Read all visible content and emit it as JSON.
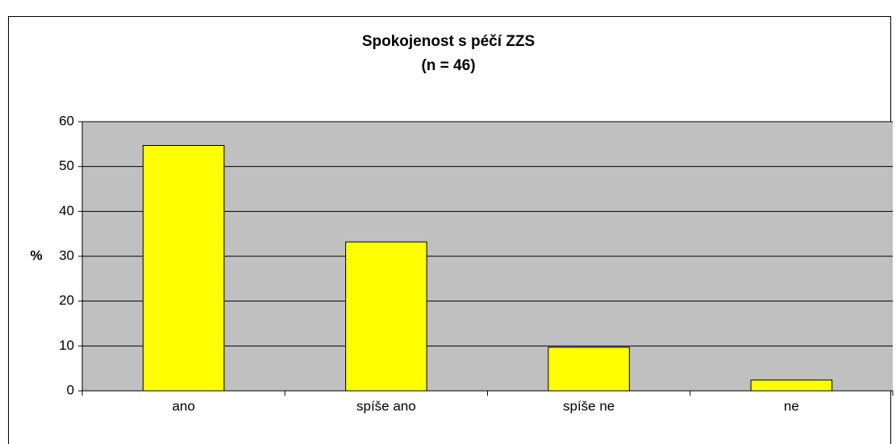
{
  "chart_data": {
    "type": "bar",
    "title": "Spokojenost s péčí ZZS",
    "subtitle": "(n = 46)",
    "y_label": "%",
    "categories": [
      "ano",
      "spíše ano",
      "spíše ne",
      "ne"
    ],
    "values": [
      54.7,
      33.2,
      9.7,
      2.4
    ],
    "color": "#ffff00",
    "ylim": [
      0,
      60
    ],
    "yticks": [
      0,
      10,
      20,
      30,
      40,
      50,
      60
    ],
    "grid": true
  }
}
